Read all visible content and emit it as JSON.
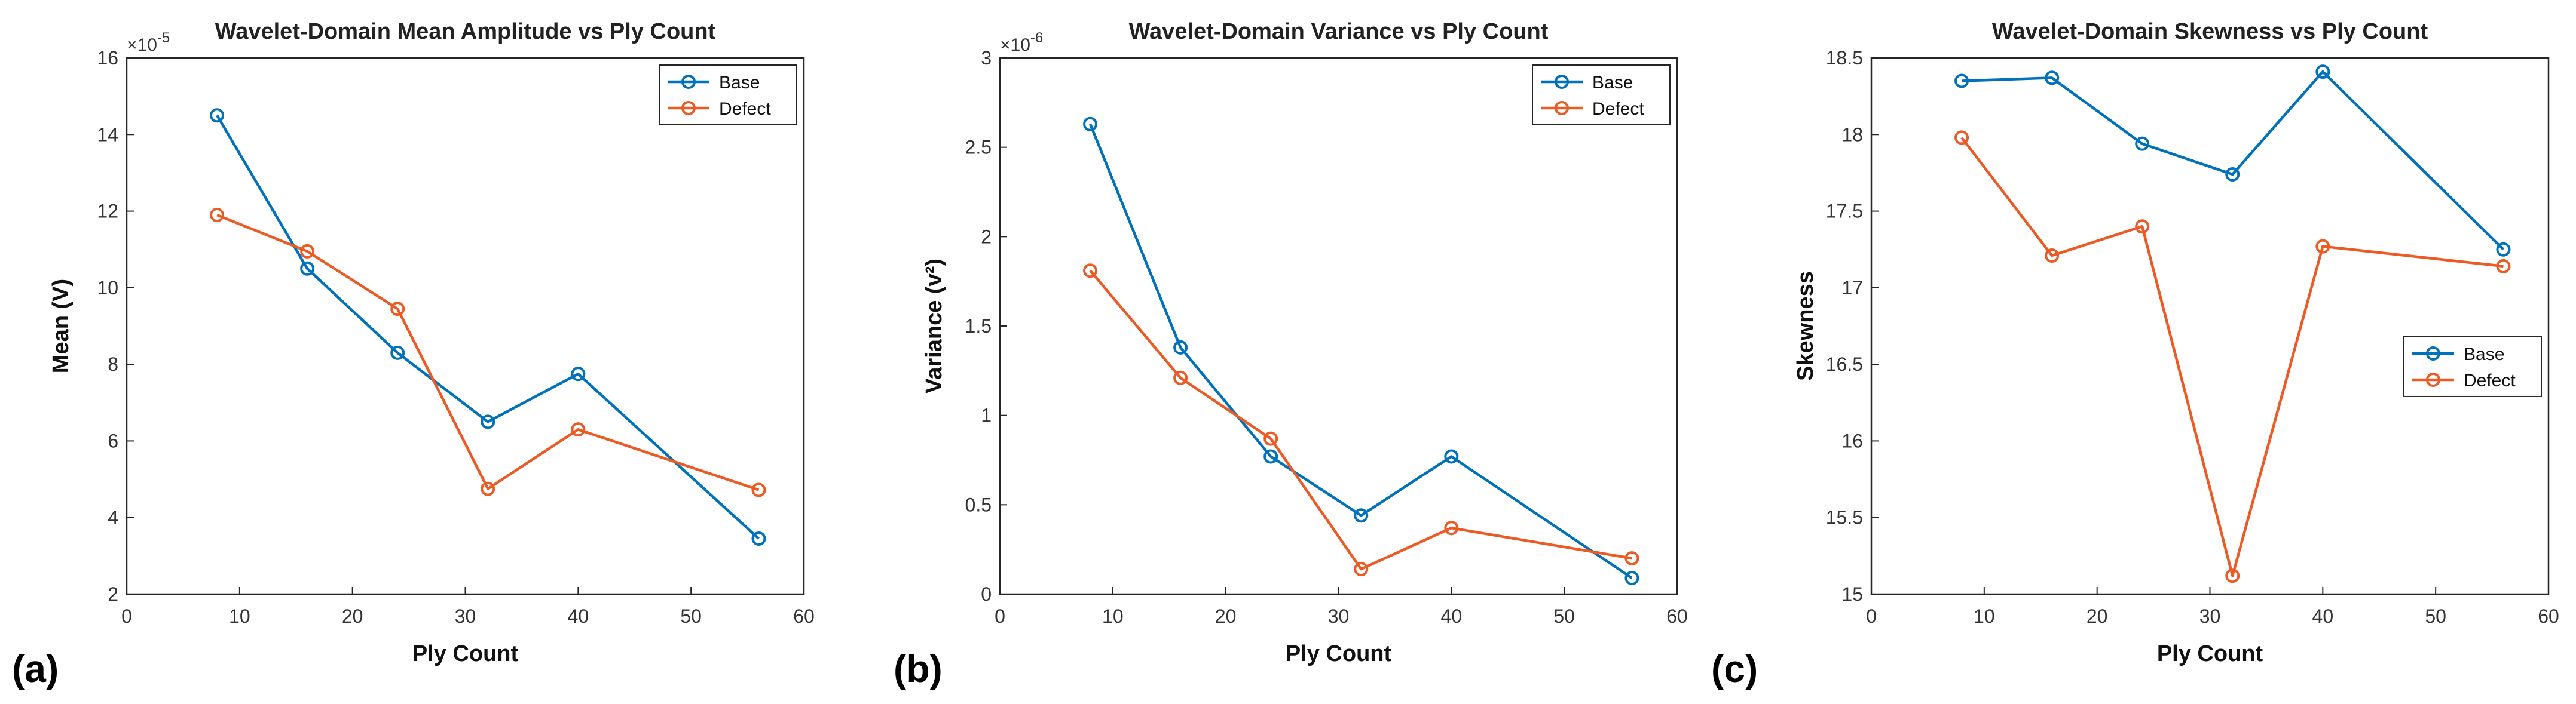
{
  "colors": {
    "base": "#0072BD",
    "defect": "#EE5A24"
  },
  "panel_labels": [
    "(a)",
    "(b)",
    "(c)"
  ],
  "chart_data": [
    {
      "type": "line",
      "title": "Wavelet-Domain Mean Amplitude vs Ply Count",
      "xlabel": "Ply Count",
      "ylabel": "Mean (V)",
      "exponent_label": "×10",
      "exponent_power": "-5",
      "xlim": [
        0,
        60
      ],
      "ylim": [
        2,
        16
      ],
      "xticks": [
        0,
        10,
        20,
        30,
        40,
        50,
        60
      ],
      "yticks": [
        2,
        4,
        6,
        8,
        10,
        12,
        14,
        16
      ],
      "grid": true,
      "legend_position": "top-right",
      "x": [
        8,
        16,
        24,
        32,
        40,
        56
      ],
      "series": [
        {
          "name": "Base",
          "values": [
            14.5,
            10.5,
            8.3,
            6.5,
            7.75,
            3.45
          ]
        },
        {
          "name": "Defect",
          "values": [
            11.9,
            10.95,
            9.45,
            4.75,
            6.3,
            4.72
          ]
        }
      ]
    },
    {
      "type": "line",
      "title": "Wavelet-Domain Variance vs Ply Count",
      "xlabel": "Ply Count",
      "ylabel": "Variance (v²)",
      "exponent_label": "×10",
      "exponent_power": "-6",
      "xlim": [
        0,
        60
      ],
      "ylim": [
        0,
        3
      ],
      "xticks": [
        0,
        10,
        20,
        30,
        40,
        50,
        60
      ],
      "yticks": [
        0,
        0.5,
        1,
        1.5,
        2,
        2.5,
        3
      ],
      "grid": true,
      "legend_position": "top-right",
      "x": [
        8,
        16,
        24,
        32,
        40,
        56
      ],
      "series": [
        {
          "name": "Base",
          "values": [
            2.63,
            1.38,
            0.77,
            0.44,
            0.77,
            0.09
          ]
        },
        {
          "name": "Defect",
          "values": [
            1.81,
            1.21,
            0.87,
            0.14,
            0.37,
            0.2
          ]
        }
      ]
    },
    {
      "type": "line",
      "title": "Wavelet-Domain Skewness vs Ply Count",
      "xlabel": "Ply Count",
      "ylabel": "Skewness",
      "exponent_label": "",
      "exponent_power": "",
      "xlim": [
        0,
        60
      ],
      "ylim": [
        15,
        18.5
      ],
      "xticks": [
        0,
        10,
        20,
        30,
        40,
        50,
        60
      ],
      "yticks": [
        15,
        15.5,
        16,
        16.5,
        17,
        17.5,
        18,
        18.5
      ],
      "grid": true,
      "legend_position": "right",
      "x": [
        8,
        16,
        24,
        32,
        40,
        56
      ],
      "series": [
        {
          "name": "Base",
          "values": [
            18.35,
            18.37,
            17.94,
            17.74,
            18.41,
            17.25
          ]
        },
        {
          "name": "Defect",
          "values": [
            17.98,
            17.21,
            17.4,
            15.12,
            17.27,
            17.14
          ]
        }
      ]
    }
  ]
}
